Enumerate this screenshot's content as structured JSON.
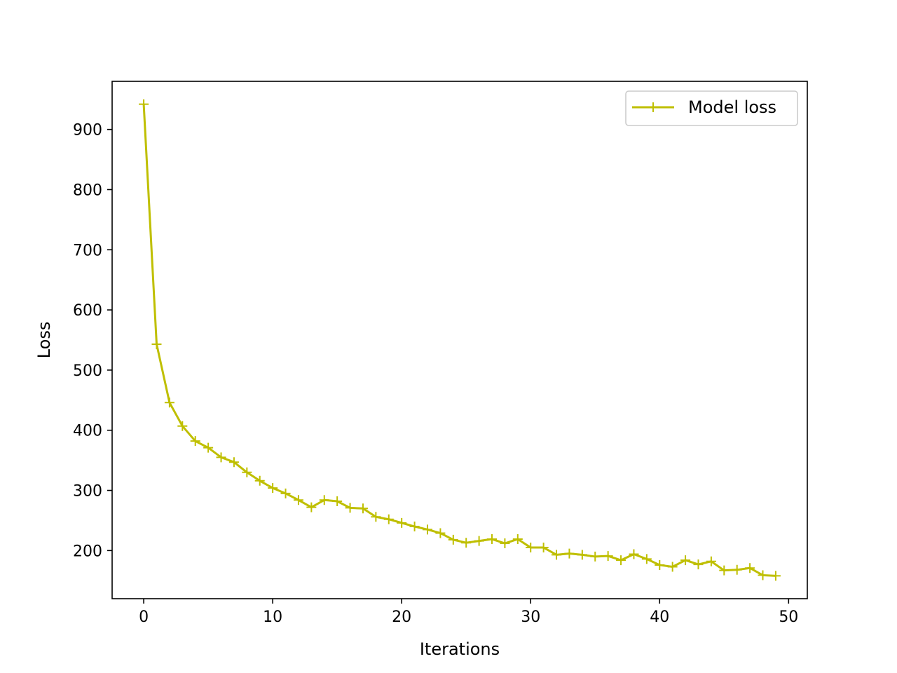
{
  "chart_data": {
    "type": "line",
    "xlabel": "Iterations",
    "ylabel": "Loss",
    "xlim": [
      -2.45,
      51.45
    ],
    "ylim": [
      120,
      980
    ],
    "xticks": [
      0,
      10,
      20,
      30,
      40,
      50
    ],
    "yticks": [
      200,
      300,
      400,
      500,
      600,
      700,
      800,
      900
    ],
    "grid": false,
    "legend": "top-right",
    "series": [
      {
        "name": "Model loss",
        "color": "#bfbf00",
        "marker": "plus",
        "x": [
          0,
          1,
          2,
          3,
          4,
          5,
          6,
          7,
          8,
          9,
          10,
          11,
          12,
          13,
          14,
          15,
          16,
          17,
          18,
          19,
          20,
          21,
          22,
          23,
          24,
          25,
          26,
          27,
          28,
          29,
          30,
          31,
          32,
          33,
          34,
          35,
          36,
          37,
          38,
          39,
          40,
          41,
          42,
          43,
          44,
          45,
          46,
          47,
          48,
          49
        ],
        "y": [
          942,
          543,
          446,
          407,
          382,
          371,
          355,
          347,
          330,
          316,
          304,
          295,
          284,
          272,
          284,
          282,
          271,
          270,
          256,
          252,
          246,
          240,
          235,
          229,
          218,
          213,
          216,
          219,
          212,
          219,
          205,
          205,
          193,
          195,
          193,
          190,
          191,
          184,
          194,
          186,
          176,
          173,
          184,
          177,
          182,
          167,
          168,
          171,
          159,
          158
        ]
      }
    ]
  }
}
